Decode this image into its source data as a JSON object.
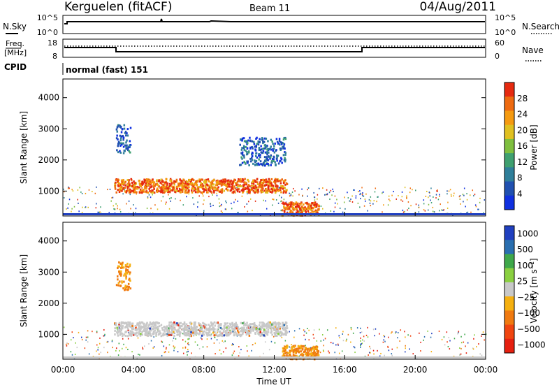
{
  "header": {
    "station": "Kerguelen (fitACF)",
    "beam": "Beam 11",
    "date": "04/Aug/2011"
  },
  "top_panels": {
    "nsky_label": "N.Sky",
    "nsky_ticks": [
      "10^5",
      "10^0"
    ],
    "nsearch_label": "N.Search",
    "nsearch_ticks": [
      "10^5",
      "10^0"
    ],
    "freq_label_1": "Freq.",
    "freq_label_2": "[MHz]",
    "freq_ticks": [
      "18",
      "8"
    ],
    "nave_label": "Nave",
    "nave_ticks": [
      "60",
      "0"
    ],
    "cpid_label": "CPID",
    "cpid_value": "normal (fast) 151"
  },
  "colors": {
    "power": [
      "#1030e0",
      "#2050b0",
      "#2f7f9a",
      "#3fa070",
      "#7fbf3f",
      "#e0c020",
      "#f59a10",
      "#ee6a10",
      "#e62a10"
    ],
    "velocity": [
      "#e62010",
      "#f04510",
      "#f07a10",
      "#f5b010",
      "#c8c8c8",
      "#8ad040",
      "#3fa84a",
      "#2a6fb0",
      "#2040c0"
    ]
  },
  "chart_data": [
    {
      "type": "heatmap",
      "panel": "power",
      "ylabel": "Slant Range [km]",
      "yticks": [
        "4000",
        "3000",
        "2000",
        "1000"
      ],
      "ylim": [
        200,
        4600
      ],
      "xlim": [
        "00:00",
        "24:00"
      ],
      "colorbar_label": "Power [dB]",
      "colorbar_ticks": [
        "28",
        "24",
        "20",
        "16",
        "12",
        "8",
        "4"
      ],
      "features": [
        {
          "t_start": 2.9,
          "t_end": 12.7,
          "range_center_km": 1200,
          "value": 24
        },
        {
          "t_start": 3.0,
          "t_end": 3.8,
          "range_center_km": 2700,
          "value": 8
        },
        {
          "t_start": 10.0,
          "t_end": 12.6,
          "range_center_km": 2300,
          "value": 8
        },
        {
          "t_start": 12.4,
          "t_end": 14.5,
          "range_center_km": 450,
          "value": 28
        }
      ]
    },
    {
      "type": "heatmap",
      "panel": "velocity",
      "ylabel": "Slant Range [km]",
      "yticks": [
        "4000",
        "3000",
        "2000",
        "1000"
      ],
      "ylim": [
        200,
        4600
      ],
      "xlim": [
        "00:00",
        "24:00"
      ],
      "xticks": [
        "00:00",
        "04:00",
        "08:00",
        "12:00",
        "16:00",
        "20:00",
        "00:00"
      ],
      "xlabel": "Time UT",
      "colorbar_label": "Velocity [m s⁻¹]",
      "colorbar_ticks": [
        "1000",
        "500",
        "100",
        "25",
        "−25",
        "−100",
        "−500",
        "−1000"
      ],
      "features": [
        {
          "t_start": 2.9,
          "t_end": 12.7,
          "range_center_km": 1200,
          "value": 0
        },
        {
          "t_start": 3.0,
          "t_end": 3.8,
          "range_center_km": 2900,
          "value": -100
        },
        {
          "t_start": 12.4,
          "t_end": 14.5,
          "range_center_km": 450,
          "value": -100
        }
      ]
    }
  ]
}
